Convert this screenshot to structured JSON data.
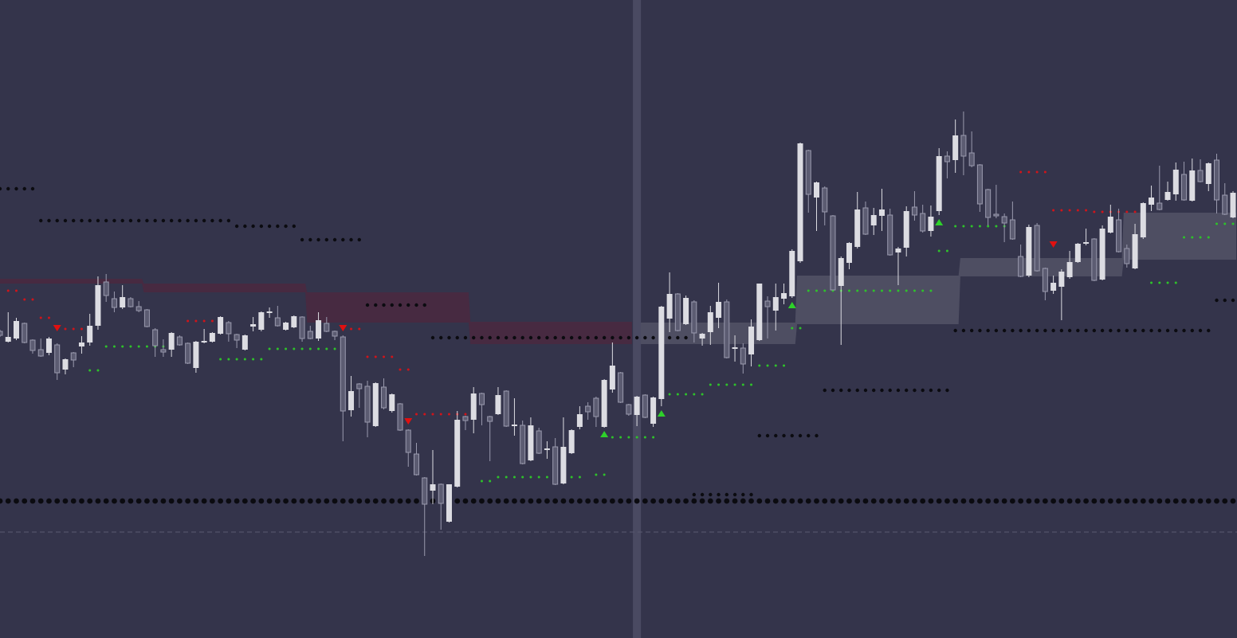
{
  "chart_data": {
    "type": "candlestick",
    "title": "",
    "xlabel": "",
    "ylabel": "",
    "grid": false,
    "colors": {
      "background": "#34344b",
      "bull_body": "#dcdce2",
      "bear_body": "#5c5c72",
      "bear_border": "#9a9aae",
      "resistance_cloud": "#472a41",
      "support_cloud": "rgba(255,255,255,0.13)",
      "pivot_dots": "#0b0b10",
      "stop_above": "#d0141a",
      "stop_below": "#2ec22a",
      "sell_signal": "#e01010",
      "buy_signal": "#2ed12a",
      "session_break": "#4a4a62",
      "reference_line": "#5a5a70"
    },
    "candles_ohlc": [
      [
        384,
        386,
        377,
        379
      ],
      [
        371,
        408,
        370,
        377
      ],
      [
        375,
        401,
        373,
        397
      ],
      [
        394,
        395,
        369,
        370
      ],
      [
        373,
        374,
        356,
        360
      ],
      [
        361,
        375,
        352,
        353
      ],
      [
        357,
        377,
        354,
        375
      ],
      [
        367,
        369,
        323,
        332
      ],
      [
        336,
        350,
        330,
        349
      ],
      [
        357,
        358,
        339,
        348
      ],
      [
        365,
        378,
        356,
        370
      ],
      [
        370,
        406,
        366,
        391
      ],
      [
        391,
        453,
        386,
        442
      ],
      [
        446,
        456,
        421,
        429
      ],
      [
        425,
        434,
        408,
        414
      ],
      [
        414,
        442,
        412,
        427
      ],
      [
        425,
        427,
        414,
        415
      ],
      [
        415,
        422,
        408,
        410
      ],
      [
        411,
        412,
        389,
        390
      ],
      [
        386,
        388,
        352,
        366
      ],
      [
        361,
        374,
        352,
        358
      ],
      [
        361,
        383,
        352,
        382
      ],
      [
        377,
        379,
        366,
        367
      ],
      [
        369,
        370,
        343,
        344
      ],
      [
        338,
        372,
        332,
        371
      ],
      [
        370,
        387,
        369,
        372
      ],
      [
        371,
        383,
        370,
        382
      ],
      [
        381,
        403,
        380,
        402
      ],
      [
        395,
        397,
        371,
        381
      ],
      [
        380,
        381,
        363,
        373
      ],
      [
        361,
        380,
        360,
        379
      ],
      [
        390,
        402,
        384,
        393
      ],
      [
        386,
        409,
        384,
        408
      ],
      [
        407,
        414,
        401,
        409
      ],
      [
        401,
        416,
        390,
        391
      ],
      [
        386,
        396,
        385,
        395
      ],
      [
        389,
        404,
        388,
        403
      ],
      [
        402,
        403,
        371,
        375
      ],
      [
        384,
        391,
        374,
        375
      ],
      [
        375,
        408,
        372,
        398
      ],
      [
        394,
        402,
        383,
        384
      ],
      [
        384,
        385,
        373,
        378
      ],
      [
        377,
        379,
        246,
        284
      ],
      [
        285,
        328,
        277,
        309
      ],
      [
        318,
        319,
        288,
        312
      ],
      [
        315,
        322,
        251,
        270
      ],
      [
        265,
        320,
        264,
        319
      ],
      [
        314,
        325,
        286,
        288
      ],
      [
        284,
        306,
        282,
        305
      ],
      [
        293,
        294,
        259,
        260
      ],
      [
        260,
        261,
        214,
        232
      ],
      [
        230,
        244,
        203,
        204
      ],
      [
        200,
        201,
        102,
        167
      ],
      [
        184,
        235,
        167,
        192
      ],
      [
        192,
        193,
        135,
        168
      ],
      [
        145,
        192,
        144,
        192
      ],
      [
        189,
        284,
        188,
        273
      ],
      [
        277,
        278,
        260,
        272
      ],
      [
        273,
        314,
        256,
        306
      ],
      [
        306,
        307,
        266,
        292
      ],
      [
        277,
        278,
        221,
        271
      ],
      [
        280,
        314,
        279,
        304
      ],
      [
        309,
        310,
        264,
        265
      ],
      [
        266,
        300,
        253,
        267
      ],
      [
        266,
        272,
        217,
        218
      ],
      [
        222,
        276,
        221,
        266
      ],
      [
        259,
        263,
        230,
        231
      ],
      [
        236,
        246,
        224,
        237
      ],
      [
        239,
        250,
        191,
        192
      ],
      [
        193,
        276,
        192,
        239
      ],
      [
        231,
        261,
        230,
        260
      ],
      [
        264,
        290,
        261,
        280
      ],
      [
        290,
        295,
        273,
        283
      ],
      [
        300,
        302,
        264,
        277
      ],
      [
        264,
        324,
        263,
        323
      ],
      [
        311,
        370,
        307,
        341
      ],
      [
        332,
        333,
        294,
        295
      ],
      [
        292,
        293,
        278,
        280
      ],
      [
        279,
        303,
        265,
        302
      ],
      [
        304,
        305,
        275,
        276
      ],
      [
        268,
        302,
        264,
        301
      ],
      [
        299,
        416,
        290,
        415
      ],
      [
        400,
        458,
        383,
        431
      ],
      [
        431,
        432,
        384,
        385
      ],
      [
        393,
        429,
        392,
        426
      ],
      [
        421,
        423,
        370,
        382
      ],
      [
        375,
        382,
        366,
        381
      ],
      [
        383,
        416,
        367,
        408
      ],
      [
        401,
        445,
        388,
        421
      ],
      [
        421,
        424,
        350,
        351
      ],
      [
        362,
        379,
        346,
        364
      ],
      [
        363,
        369,
        331,
        343
      ],
      [
        355,
        399,
        340,
        390
      ],
      [
        373,
        444,
        372,
        444
      ],
      [
        422,
        428,
        375,
        415
      ],
      [
        410,
        444,
        385,
        427
      ],
      [
        425,
        444,
        418,
        432
      ],
      [
        428,
        487,
        426,
        485
      ],
      [
        472,
        621,
        470,
        620
      ],
      [
        611,
        612,
        533,
        556
      ],
      [
        552,
        572,
        510,
        571
      ],
      [
        564,
        566,
        517,
        534
      ],
      [
        529,
        530,
        436,
        436
      ],
      [
        441,
        478,
        367,
        476
      ],
      [
        470,
        496,
        462,
        495
      ],
      [
        490,
        559,
        488,
        537
      ],
      [
        539,
        547,
        505,
        506
      ],
      [
        517,
        539,
        505,
        530
      ],
      [
        529,
        563,
        510,
        537
      ],
      [
        530,
        538,
        479,
        480
      ],
      [
        483,
        490,
        442,
        488
      ],
      [
        489,
        541,
        478,
        535
      ],
      [
        540,
        560,
        523,
        530
      ],
      [
        532,
        543,
        508,
        510
      ],
      [
        510,
        542,
        503,
        528
      ],
      [
        535,
        614,
        530,
        604
      ],
      [
        604,
        610,
        576,
        597
      ],
      [
        599,
        650,
        583,
        630
      ],
      [
        630,
        660,
        580,
        604
      ],
      [
        608,
        635,
        590,
        592
      ],
      [
        593,
        594,
        534,
        544
      ],
      [
        562,
        563,
        517,
        527
      ],
      [
        531,
        568,
        526,
        530
      ],
      [
        528,
        532,
        496,
        520
      ],
      [
        524,
        547,
        499,
        500
      ],
      [
        478,
        493,
        452,
        453
      ],
      [
        454,
        518,
        452,
        515
      ],
      [
        517,
        520,
        459,
        460
      ],
      [
        463,
        464,
        423,
        434
      ],
      [
        435,
        454,
        431,
        445
      ],
      [
        440,
        462,
        398,
        459
      ],
      [
        452,
        485,
        450,
        471
      ],
      [
        471,
        495,
        470,
        494
      ],
      [
        495,
        513,
        492,
        496
      ],
      [
        500,
        501,
        447,
        448
      ],
      [
        449,
        517,
        448,
        513
      ],
      [
        508,
        543,
        507,
        528
      ],
      [
        524,
        538,
        483,
        484
      ],
      [
        488,
        493,
        464,
        469
      ],
      [
        463,
        519,
        462,
        506
      ],
      [
        502,
        546,
        500,
        545
      ],
      [
        543,
        567,
        535,
        552
      ],
      [
        545,
        592,
        536,
        537
      ],
      [
        549,
        572,
        548,
        559
      ],
      [
        556,
        596,
        548,
        587
      ],
      [
        581,
        597,
        548,
        549
      ],
      [
        548,
        601,
        547,
        586
      ],
      [
        586,
        600,
        571,
        572
      ],
      [
        569,
        596,
        560,
        595
      ],
      [
        599,
        607,
        532,
        549
      ],
      [
        555,
        570,
        530,
        531
      ],
      [
        527,
        560,
        526,
        558
      ]
    ],
    "resistance_cloud": [
      {
        "from": 0,
        "to": 17,
        "top": 450,
        "bottom": 444
      },
      {
        "from": 18,
        "to": 37,
        "top": 444,
        "bottom": 433
      },
      {
        "from": 38,
        "to": 57,
        "top": 433,
        "bottom": 395
      },
      {
        "from": 58,
        "to": 77,
        "top": 396,
        "bottom": 368
      }
    ],
    "support_cloud": [
      {
        "from": 78,
        "to": 97,
        "top": 395,
        "bottom": 368
      },
      {
        "from": 98,
        "to": 117,
        "top": 454,
        "bottom": 393
      },
      {
        "from": 118,
        "to": 137,
        "top": 476,
        "bottom": 453
      },
      {
        "from": 138,
        "to": 151,
        "top": 533,
        "bottom": 474
      }
    ],
    "pivot_levels": [
      {
        "from": 0,
        "to": 4,
        "price": 563
      },
      {
        "from": 5,
        "to": 28,
        "price": 523
      },
      {
        "from": 29,
        "to": 36,
        "price": 516
      },
      {
        "from": 37,
        "to": 44,
        "price": 499
      },
      {
        "from": 45,
        "to": 52,
        "price": 417
      },
      {
        "from": 53,
        "to": 84,
        "price": 376
      },
      {
        "from": 85,
        "to": 92,
        "price": 179
      },
      {
        "from": 93,
        "to": 100,
        "price": 253
      },
      {
        "from": 101,
        "to": 116,
        "price": 310
      },
      {
        "from": 117,
        "to": 148,
        "price": 385
      },
      {
        "from": 149,
        "to": 151,
        "price": 423
      }
    ],
    "major_level": {
      "from": 0,
      "to": 151,
      "price": 171
    },
    "stop_above": [
      {
        "from": 1,
        "to": 2,
        "price": 435
      },
      {
        "from": 3,
        "to": 4,
        "price": 424
      },
      {
        "from": 5,
        "to": 6,
        "price": 401
      },
      {
        "from": 8,
        "to": 10,
        "price": 387
      },
      {
        "from": 23,
        "to": 26,
        "price": 397
      },
      {
        "from": 43,
        "to": 44,
        "price": 387
      },
      {
        "from": 45,
        "to": 48,
        "price": 352
      },
      {
        "from": 49,
        "to": 50,
        "price": 336
      },
      {
        "from": 51,
        "to": 57,
        "price": 280
      },
      {
        "from": 125,
        "to": 128,
        "price": 584
      },
      {
        "from": 129,
        "to": 133,
        "price": 536
      },
      {
        "from": 134,
        "to": 139,
        "price": 534
      }
    ],
    "stop_below": [
      {
        "from": 11,
        "to": 12,
        "price": 335
      },
      {
        "from": 13,
        "to": 20,
        "price": 365
      },
      {
        "from": 27,
        "to": 32,
        "price": 349
      },
      {
        "from": 33,
        "to": 42,
        "price": 362
      },
      {
        "from": 59,
        "to": 60,
        "price": 196
      },
      {
        "from": 61,
        "to": 71,
        "price": 201
      },
      {
        "from": 73,
        "to": 74,
        "price": 204
      },
      {
        "from": 75,
        "to": 80,
        "price": 251
      },
      {
        "from": 82,
        "to": 86,
        "price": 305
      },
      {
        "from": 87,
        "to": 92,
        "price": 317
      },
      {
        "from": 93,
        "to": 96,
        "price": 341
      },
      {
        "from": 97,
        "to": 98,
        "price": 388
      },
      {
        "from": 99,
        "to": 114,
        "price": 435
      },
      {
        "from": 115,
        "to": 116,
        "price": 485
      },
      {
        "from": 117,
        "to": 124,
        "price": 516
      },
      {
        "from": 141,
        "to": 144,
        "price": 445
      },
      {
        "from": 145,
        "to": 148,
        "price": 502
      },
      {
        "from": 149,
        "to": 151,
        "price": 519
      }
    ],
    "sell_signals": [
      {
        "index": 7,
        "price": 388
      },
      {
        "index": 42,
        "price": 388
      },
      {
        "index": 50,
        "price": 271
      },
      {
        "index": 129,
        "price": 493
      }
    ],
    "buy_signals": [
      {
        "index": 74,
        "price": 255
      },
      {
        "index": 81,
        "price": 281
      },
      {
        "index": 97,
        "price": 417
      },
      {
        "index": 115,
        "price": 521
      }
    ],
    "session_break_index": 78,
    "reference_line_price": 132
  }
}
